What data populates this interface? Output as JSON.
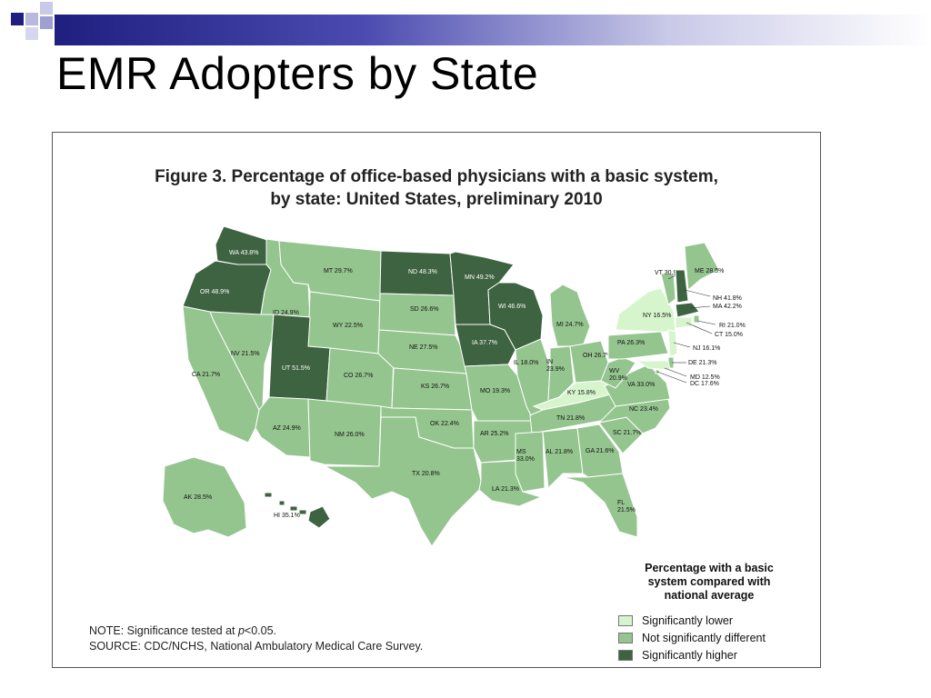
{
  "slide": {
    "title": "EMR Adopters by State"
  },
  "figure": {
    "title_line1": "Figure 3. Percentage of office-based physicians with a basic system,",
    "title_line2": "by state: United States, preliminary 2010"
  },
  "colors": {
    "low": "#d6f5cd",
    "mid": "#94c58e",
    "high": "#3d6340",
    "accent_dark": "#1f1f80"
  },
  "legend": {
    "title": [
      "Percentage with a basic",
      "system compared with",
      "national average"
    ],
    "items": [
      {
        "label": "Significantly lower",
        "category": "low"
      },
      {
        "label": "Not significantly different",
        "category": "mid"
      },
      {
        "label": "Significantly higher",
        "category": "high"
      }
    ]
  },
  "note": {
    "line1_prefix": "NOTE: Significance tested at ",
    "line1_var": "p",
    "line1_suffix": "<0.05.",
    "line2": "SOURCE: CDC/NCHS, National Ambulatory Medical Care Survey."
  },
  "states": [
    {
      "abbr": "WA",
      "value": 43.8,
      "category": "high",
      "label": "WA 43.8%"
    },
    {
      "abbr": "OR",
      "value": 48.9,
      "category": "high",
      "label": "OR 48.9%"
    },
    {
      "abbr": "CA",
      "value": 21.7,
      "category": "mid",
      "label": "CA 21.7%"
    },
    {
      "abbr": "NV",
      "value": 21.5,
      "category": "mid",
      "label": "NV 21.5%"
    },
    {
      "abbr": "ID",
      "value": 24.9,
      "category": "mid",
      "label": "ID 24.9%"
    },
    {
      "abbr": "MT",
      "value": 29.7,
      "category": "mid",
      "label": "MT 29.7%"
    },
    {
      "abbr": "WY",
      "value": 22.5,
      "category": "mid",
      "label": "WY 22.5%"
    },
    {
      "abbr": "UT",
      "value": 51.5,
      "category": "high",
      "label": "UT 51.5%"
    },
    {
      "abbr": "CO",
      "value": 26.7,
      "category": "mid",
      "label": "CO 26.7%"
    },
    {
      "abbr": "AZ",
      "value": 24.9,
      "category": "mid",
      "label": "AZ 24.9%"
    },
    {
      "abbr": "NM",
      "value": 26.0,
      "category": "mid",
      "label": "NM 26.0%"
    },
    {
      "abbr": "ND",
      "value": 48.3,
      "category": "high",
      "label": "ND 48.3%"
    },
    {
      "abbr": "SD",
      "value": 26.6,
      "category": "mid",
      "label": "SD 26.6%"
    },
    {
      "abbr": "NE",
      "value": 27.5,
      "category": "mid",
      "label": "NE 27.5%"
    },
    {
      "abbr": "KS",
      "value": 26.7,
      "category": "mid",
      "label": "KS 26.7%"
    },
    {
      "abbr": "OK",
      "value": 22.4,
      "category": "mid",
      "label": "OK 22.4%"
    },
    {
      "abbr": "TX",
      "value": 20.8,
      "category": "mid",
      "label": "TX 20.8%"
    },
    {
      "abbr": "MN",
      "value": 49.2,
      "category": "high",
      "label": "MN 49.2%"
    },
    {
      "abbr": "IA",
      "value": 37.7,
      "category": "high",
      "label": "IA 37.7%"
    },
    {
      "abbr": "MO",
      "value": 19.3,
      "category": "mid",
      "label": "MO 19.3%"
    },
    {
      "abbr": "AR",
      "value": 25.2,
      "category": "mid",
      "label": "AR 25.2%"
    },
    {
      "abbr": "LA",
      "value": 21.3,
      "category": "mid",
      "label": "LA 21.3%"
    },
    {
      "abbr": "WI",
      "value": 46.6,
      "category": "high",
      "label": "WI 46.6%"
    },
    {
      "abbr": "IL",
      "value": 18.0,
      "category": "mid",
      "label": "IL 18.0%"
    },
    {
      "abbr": "MI",
      "value": 24.7,
      "category": "mid",
      "label": "MI 24.7%"
    },
    {
      "abbr": "IN",
      "value": 23.9,
      "category": "mid",
      "label": "IN 23.9%"
    },
    {
      "abbr": "OH",
      "value": 26.7,
      "category": "mid",
      "label": "OH 26.7%"
    },
    {
      "abbr": "KY",
      "value": 15.8,
      "category": "low",
      "label": "KY 15.8%"
    },
    {
      "abbr": "TN",
      "value": 21.8,
      "category": "mid",
      "label": "TN 21.8%"
    },
    {
      "abbr": "MS",
      "value": 33.0,
      "category": "mid",
      "label": "MS 33.0%"
    },
    {
      "abbr": "AL",
      "value": 21.8,
      "category": "mid",
      "label": "AL 21.8%"
    },
    {
      "abbr": "GA",
      "value": 21.6,
      "category": "mid",
      "label": "GA 21.6%"
    },
    {
      "abbr": "FL",
      "value": 21.5,
      "category": "mid",
      "label": "FL 21.5%"
    },
    {
      "abbr": "SC",
      "value": 21.7,
      "category": "mid",
      "label": "SC 21.7%"
    },
    {
      "abbr": "NC",
      "value": 23.4,
      "category": "mid",
      "label": "NC 23.4%"
    },
    {
      "abbr": "VA",
      "value": 33.0,
      "category": "mid",
      "label": "VA 33.0%"
    },
    {
      "abbr": "WV",
      "value": 20.9,
      "category": "mid",
      "label": "WV 20.9%"
    },
    {
      "abbr": "PA",
      "value": 26.3,
      "category": "mid",
      "label": "PA 26.3%"
    },
    {
      "abbr": "NY",
      "value": 16.5,
      "category": "low",
      "label": "NY 16.5%"
    },
    {
      "abbr": "VT",
      "value": 30.9,
      "category": "mid",
      "label": "VT 30.9%"
    },
    {
      "abbr": "ME",
      "value": 28.5,
      "category": "mid",
      "label": "ME 28.5%"
    },
    {
      "abbr": "NH",
      "value": 41.8,
      "category": "high",
      "label": "NH 41.8%"
    },
    {
      "abbr": "MA",
      "value": 42.2,
      "category": "high",
      "label": "MA 42.2%"
    },
    {
      "abbr": "RI",
      "value": 21.0,
      "category": "mid",
      "label": "RI 21.0%"
    },
    {
      "abbr": "CT",
      "value": 15.0,
      "category": "low",
      "label": "CT 15.0%"
    },
    {
      "abbr": "NJ",
      "value": 16.1,
      "category": "low",
      "label": "NJ 16.1%"
    },
    {
      "abbr": "DE",
      "value": 21.3,
      "category": "mid",
      "label": "DE 21.3%"
    },
    {
      "abbr": "MD",
      "value": 12.5,
      "category": "low",
      "label": "MD 12.5%"
    },
    {
      "abbr": "DC",
      "value": 17.6,
      "category": "mid",
      "label": "DC 17.6%"
    },
    {
      "abbr": "AK",
      "value": 28.5,
      "category": "mid",
      "label": "AK 28.5%"
    },
    {
      "abbr": "HI",
      "value": 35.1,
      "category": "high",
      "label": "HI 35.1%"
    }
  ]
}
